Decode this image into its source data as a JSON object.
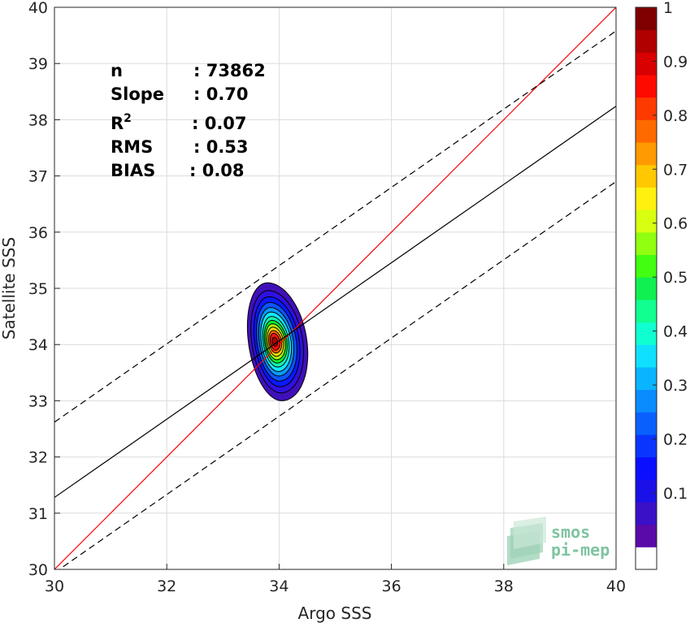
{
  "chart_data": {
    "type": "contour-density",
    "xlabel": "Argo SSS",
    "ylabel": "Satellite SSS",
    "xlim": [
      30,
      40
    ],
    "ylim": [
      30,
      40
    ],
    "x_ticks": [
      30,
      32,
      34,
      36,
      38,
      40
    ],
    "y_ticks": [
      30,
      31,
      32,
      33,
      34,
      35,
      36,
      37,
      38,
      39,
      40
    ],
    "grid": true,
    "stats": [
      {
        "label": "n",
        "value": ": 73862"
      },
      {
        "label": "Slope",
        "value": ": 0.70"
      },
      {
        "label": "R",
        "sup": "2",
        "value": ": 0.07"
      },
      {
        "label": "RMS",
        "value": ": 0.53"
      },
      {
        "label": "BIAS",
        "value": ": 0.08"
      }
    ],
    "lines": [
      {
        "name": "1:1",
        "color": "#ff0000",
        "style": "solid",
        "x": [
          30,
          40
        ],
        "y": [
          30,
          40
        ]
      },
      {
        "name": "fit",
        "color": "#000000",
        "style": "solid",
        "x": [
          30,
          40
        ],
        "y": [
          31.28,
          38.24
        ]
      },
      {
        "name": "fit+2rms",
        "color": "#000000",
        "style": "dashed",
        "x": [
          30,
          40
        ],
        "y": [
          32.62,
          39.58
        ]
      },
      {
        "name": "fit-2rms",
        "color": "#000000",
        "style": "dashed",
        "x": [
          30,
          40
        ],
        "y": [
          29.94,
          36.9
        ]
      }
    ],
    "density_center": {
      "x": 33.92,
      "y": 34.05
    },
    "contours": [
      {
        "level": 0.05,
        "color": "#3f10b8",
        "rx": 0.55,
        "ry": 1.05
      },
      {
        "level": 0.1,
        "color": "#2f10e0",
        "rx": 0.48,
        "ry": 0.91
      },
      {
        "level": 0.15,
        "color": "#0a18ff",
        "rx": 0.42,
        "ry": 0.8
      },
      {
        "level": 0.2,
        "color": "#0a55ff",
        "rx": 0.37,
        "ry": 0.7
      },
      {
        "level": 0.3,
        "color": "#0a9aff",
        "rx": 0.32,
        "ry": 0.61
      },
      {
        "level": 0.4,
        "color": "#10e8ff",
        "rx": 0.28,
        "ry": 0.53
      },
      {
        "level": 0.45,
        "color": "#10ffb0",
        "rx": 0.24,
        "ry": 0.45
      },
      {
        "level": 0.5,
        "color": "#10f030",
        "rx": 0.21,
        "ry": 0.38
      },
      {
        "level": 0.6,
        "color": "#b0ff10",
        "rx": 0.18,
        "ry": 0.32
      },
      {
        "level": 0.7,
        "color": "#ffd800",
        "rx": 0.15,
        "ry": 0.26
      },
      {
        "level": 0.8,
        "color": "#ff6a00",
        "rx": 0.12,
        "ry": 0.2
      },
      {
        "level": 0.9,
        "color": "#ff1010",
        "rx": 0.09,
        "ry": 0.15
      },
      {
        "level": 1.0,
        "color": "#b00000",
        "rx": 0.05,
        "ry": 0.08
      }
    ],
    "colorbar": {
      "ticks": [
        "0.1",
        "0.2",
        "0.3",
        "0.4",
        "0.5",
        "0.6",
        "0.7",
        "0.8",
        "0.9",
        "1"
      ],
      "colors": [
        "#ffffff",
        "#5a0aa8",
        "#3a10c8",
        "#1a10e8",
        "#0a10ff",
        "#0a35ff",
        "#0a60ff",
        "#0a8cff",
        "#0ab4ff",
        "#10e0ff",
        "#10ffd0",
        "#10ff90",
        "#10f050",
        "#40ff10",
        "#90ff10",
        "#d8ff10",
        "#fff010",
        "#ffc800",
        "#ff9a00",
        "#ff6a00",
        "#ff3a00",
        "#ff0a00",
        "#d80000",
        "#b00000",
        "#800000"
      ]
    }
  },
  "logo": {
    "line1": "smos",
    "line2": "pi-mep"
  }
}
